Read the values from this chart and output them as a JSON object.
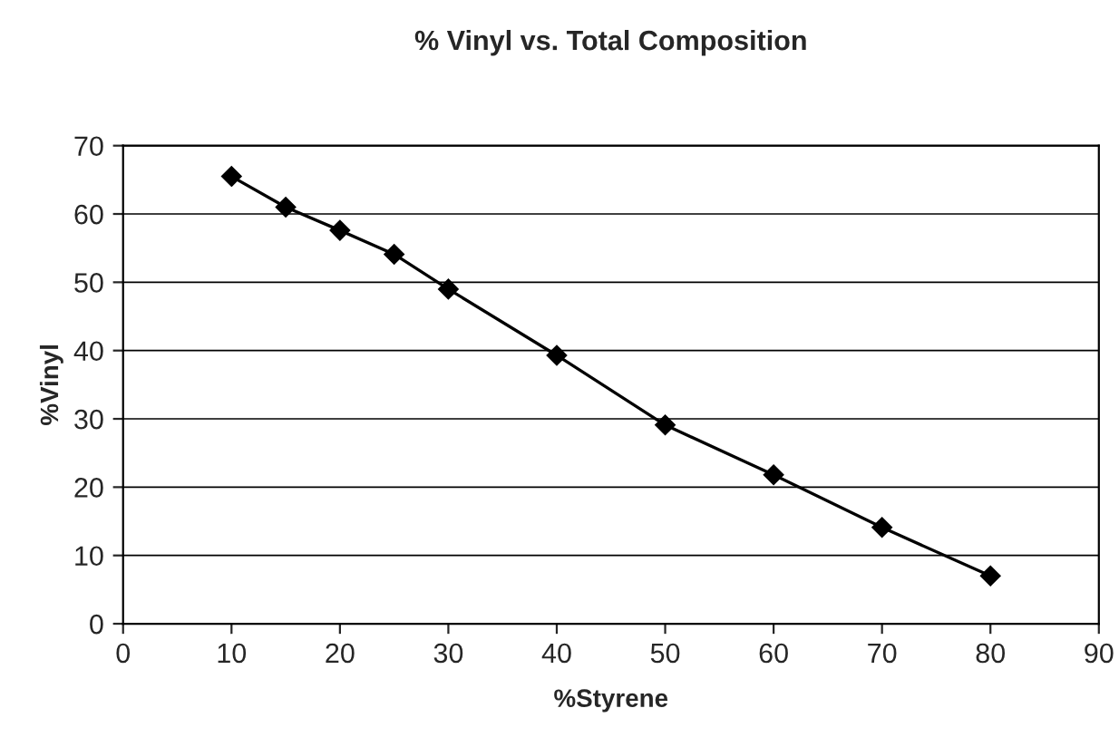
{
  "chart_data": {
    "type": "line",
    "title": "% Vinyl vs. Total Composition",
    "xlabel": "%Styrene",
    "ylabel": "%Vinyl",
    "x": [
      10,
      15,
      20,
      25,
      30,
      40,
      50,
      60,
      70,
      80
    ],
    "series": [
      {
        "color": "#000000",
        "values": [
          65.5,
          61,
          57.6,
          54.1,
          49,
          39.3,
          29.1,
          21.8,
          14.1,
          7
        ]
      }
    ],
    "xlim": [
      0,
      90
    ],
    "xticks": [
      0,
      10,
      20,
      30,
      40,
      50,
      60,
      70,
      80,
      90
    ],
    "ylim": [
      0,
      70
    ],
    "yticks": [
      0,
      10,
      20,
      30,
      40,
      50,
      60,
      70
    ],
    "grid": "y",
    "marker": "diamond",
    "line_style": "solid",
    "legend": false
  }
}
